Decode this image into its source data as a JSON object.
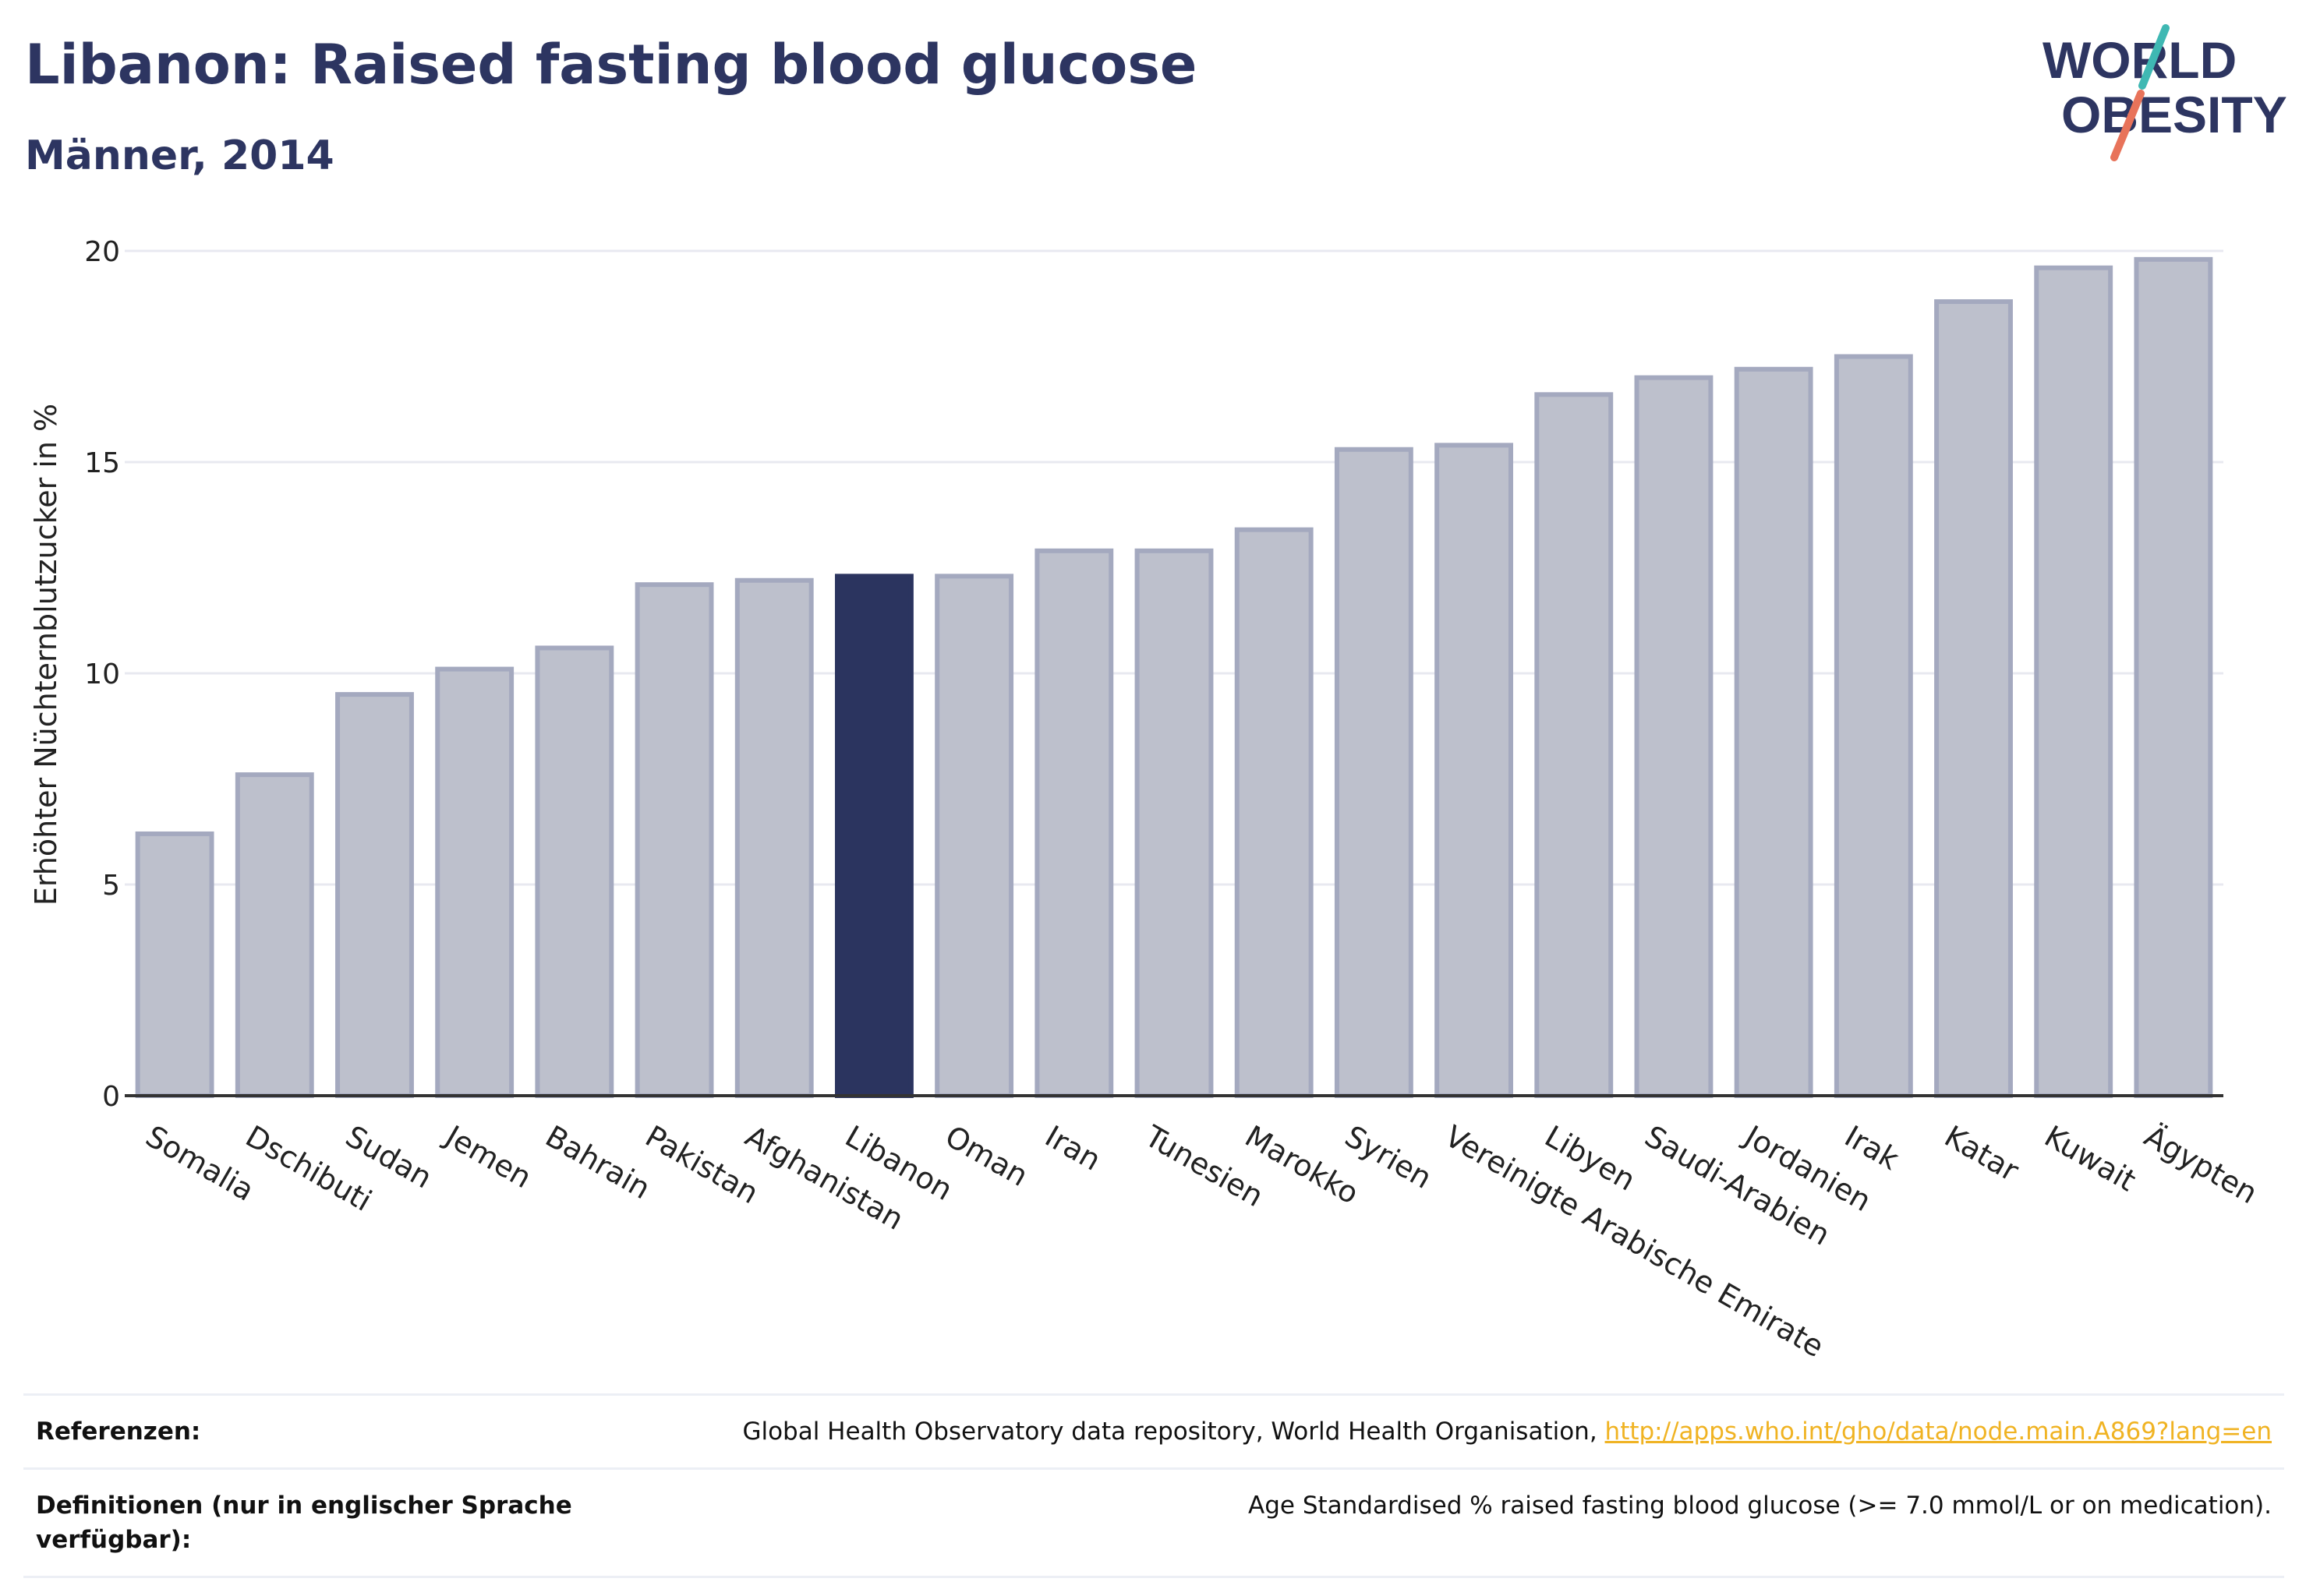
{
  "header": {
    "title": "Libanon: Raised fasting blood glucose",
    "subtitle": "Männer, 2014"
  },
  "logo": {
    "line1": "WORLD",
    "line2": "OBESITY",
    "name": "world-obesity-logo"
  },
  "colors": {
    "bar_default": "#bdc0cc",
    "bar_default_stroke": "#a4a9bf",
    "bar_highlight": "#2b345f",
    "grid": "#e8e9f0",
    "axis": "#333333",
    "title": "#2d3561",
    "link": "#f0b323"
  },
  "chart_data": {
    "type": "bar",
    "title": "Libanon: Raised fasting blood glucose",
    "subtitle": "Männer, 2014",
    "xlabel": "",
    "ylabel": "Erhöhter Nüchternblutzucker in %",
    "ylim": [
      0,
      20
    ],
    "yticks": [
      0,
      5,
      10,
      15,
      20
    ],
    "grid": true,
    "highlight": "Libanon",
    "categories": [
      "Somalia",
      "Dschibuti",
      "Sudan",
      "Jemen",
      "Bahrain",
      "Pakistan",
      "Afghanistan",
      "Libanon",
      "Oman",
      "Iran",
      "Tunesien",
      "Marokko",
      "Syrien",
      "Vereinigte Arabische Emirate",
      "Libyen",
      "Saudi-Arabien",
      "Jordanien",
      "Irak",
      "Katar",
      "Kuwait",
      "Ägypten"
    ],
    "values": [
      6.2,
      7.6,
      9.5,
      10.1,
      10.6,
      12.1,
      12.2,
      12.3,
      12.3,
      12.9,
      12.9,
      13.4,
      15.3,
      15.4,
      16.6,
      17.0,
      17.2,
      17.5,
      18.8,
      19.6,
      19.8
    ]
  },
  "references": {
    "ref_label": "Referenzen:",
    "ref_text": "Global Health Observatory data repository, World Health Organisation, ",
    "ref_link": "http://apps.who.int/gho/data/node.main.A869?lang=en",
    "def_label": "Definitionen (nur in englischer Sprache verfügbar):",
    "def_text": "Age Standardised % raised fasting blood glucose (>= 7.0 mmol/L or on medication)."
  }
}
